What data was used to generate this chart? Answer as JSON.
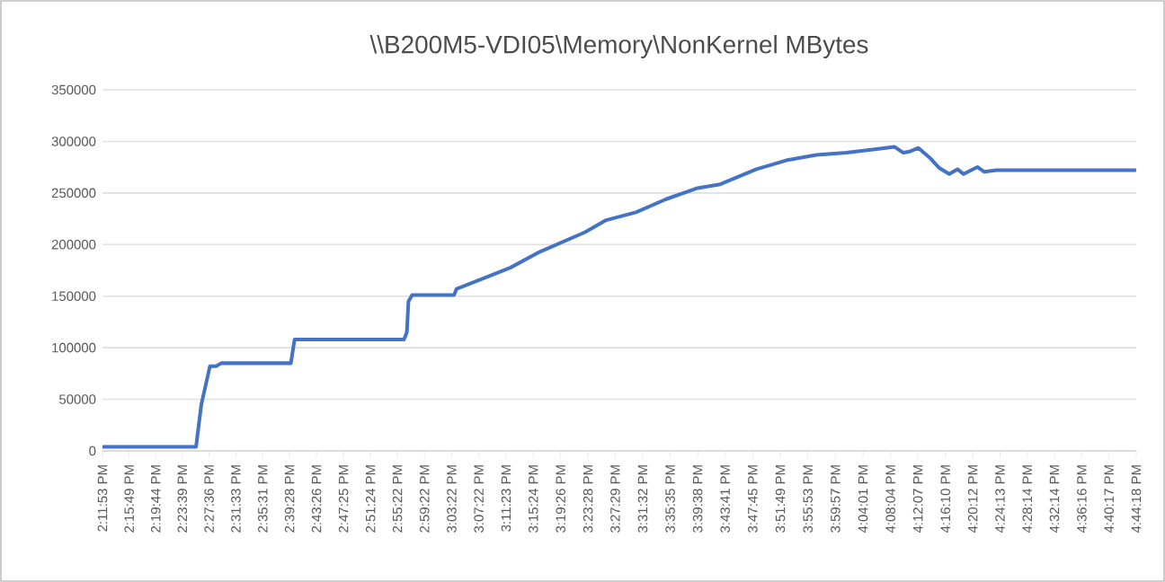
{
  "chart_data": {
    "type": "line",
    "title": "\\\\B200M5-VDI05\\Memory\\NonKernel  MBytes",
    "grid": "y",
    "marker": "none",
    "line_style": "solid",
    "ylim": [
      0,
      350000
    ],
    "yticks": [
      0,
      50000,
      100000,
      150000,
      200000,
      250000,
      300000,
      350000
    ],
    "xlim": [
      14.19806,
      16.73833
    ],
    "xticks": [
      {
        "value": 14.19806,
        "label": "2:11:53 PM"
      },
      {
        "value": 14.26361,
        "label": "2:15:49 PM"
      },
      {
        "value": 14.32889,
        "label": "2:19:44 PM"
      },
      {
        "value": 14.39417,
        "label": "2:23:39 PM"
      },
      {
        "value": 14.46,
        "label": "2:27:36 PM"
      },
      {
        "value": 14.52583,
        "label": "2:31:33 PM"
      },
      {
        "value": 14.59194,
        "label": "2:35:31 PM"
      },
      {
        "value": 14.65778,
        "label": "2:39:28 PM"
      },
      {
        "value": 14.72389,
        "label": "2:43:26 PM"
      },
      {
        "value": 14.79028,
        "label": "2:47:25 PM"
      },
      {
        "value": 14.85667,
        "label": "2:51:24 PM"
      },
      {
        "value": 14.92278,
        "label": "2:55:22 PM"
      },
      {
        "value": 14.98944,
        "label": "2:59:22 PM"
      },
      {
        "value": 15.05611,
        "label": "3:03:22 PM"
      },
      {
        "value": 15.12278,
        "label": "3:07:22 PM"
      },
      {
        "value": 15.18972,
        "label": "3:11:23 PM"
      },
      {
        "value": 15.25667,
        "label": "3:15:24 PM"
      },
      {
        "value": 15.32389,
        "label": "3:19:26 PM"
      },
      {
        "value": 15.39111,
        "label": "3:23:28 PM"
      },
      {
        "value": 15.45806,
        "label": "3:27:29 PM"
      },
      {
        "value": 15.52556,
        "label": "3:31:32 PM"
      },
      {
        "value": 15.59306,
        "label": "3:35:35 PM"
      },
      {
        "value": 15.66056,
        "label": "3:39:38 PM"
      },
      {
        "value": 15.72806,
        "label": "3:43:41 PM"
      },
      {
        "value": 15.79583,
        "label": "3:47:45 PM"
      },
      {
        "value": 15.86361,
        "label": "3:51:49 PM"
      },
      {
        "value": 15.93139,
        "label": "3:55:53 PM"
      },
      {
        "value": 15.99917,
        "label": "3:59:57 PM"
      },
      {
        "value": 16.06694,
        "label": "4:04:01 PM"
      },
      {
        "value": 16.13444,
        "label": "4:08:04 PM"
      },
      {
        "value": 16.20194,
        "label": "4:12:07 PM"
      },
      {
        "value": 16.26944,
        "label": "4:16:10 PM"
      },
      {
        "value": 16.33667,
        "label": "4:20:12 PM"
      },
      {
        "value": 16.40361,
        "label": "4:24:13 PM"
      },
      {
        "value": 16.47056,
        "label": "4:28:14 PM"
      },
      {
        "value": 16.53722,
        "label": "4:32:14 PM"
      },
      {
        "value": 16.60444,
        "label": "4:36:16 PM"
      },
      {
        "value": 16.67139,
        "label": "4:40:17 PM"
      },
      {
        "value": 16.73833,
        "label": "4:44:18 PM"
      }
    ],
    "series": [
      {
        "color": "#4472c4",
        "x": [
          14.19806,
          14.428,
          14.441,
          14.462,
          14.477,
          14.49,
          14.661,
          14.67,
          14.939,
          14.946,
          14.95,
          14.959,
          15.062,
          15.068,
          15.126,
          15.2,
          15.273,
          15.384,
          15.436,
          15.509,
          15.583,
          15.657,
          15.716,
          15.805,
          15.878,
          15.952,
          16.026,
          16.1,
          16.144,
          16.166,
          16.181,
          16.203,
          16.233,
          16.255,
          16.279,
          16.299,
          16.314,
          16.348,
          16.365,
          16.394,
          16.738
        ],
        "values": [
          4000,
          4000,
          45000,
          82000,
          82000,
          85000,
          85000,
          108000,
          108000,
          115000,
          145000,
          151000,
          151000,
          157000,
          166000,
          177500,
          193000,
          212000,
          223700,
          231300,
          244000,
          254400,
          258400,
          273000,
          281600,
          286800,
          289000,
          292600,
          294800,
          289000,
          290100,
          293700,
          283300,
          274000,
          268300,
          273000,
          268300,
          275200,
          270500,
          272000,
          272000
        ]
      }
    ]
  }
}
